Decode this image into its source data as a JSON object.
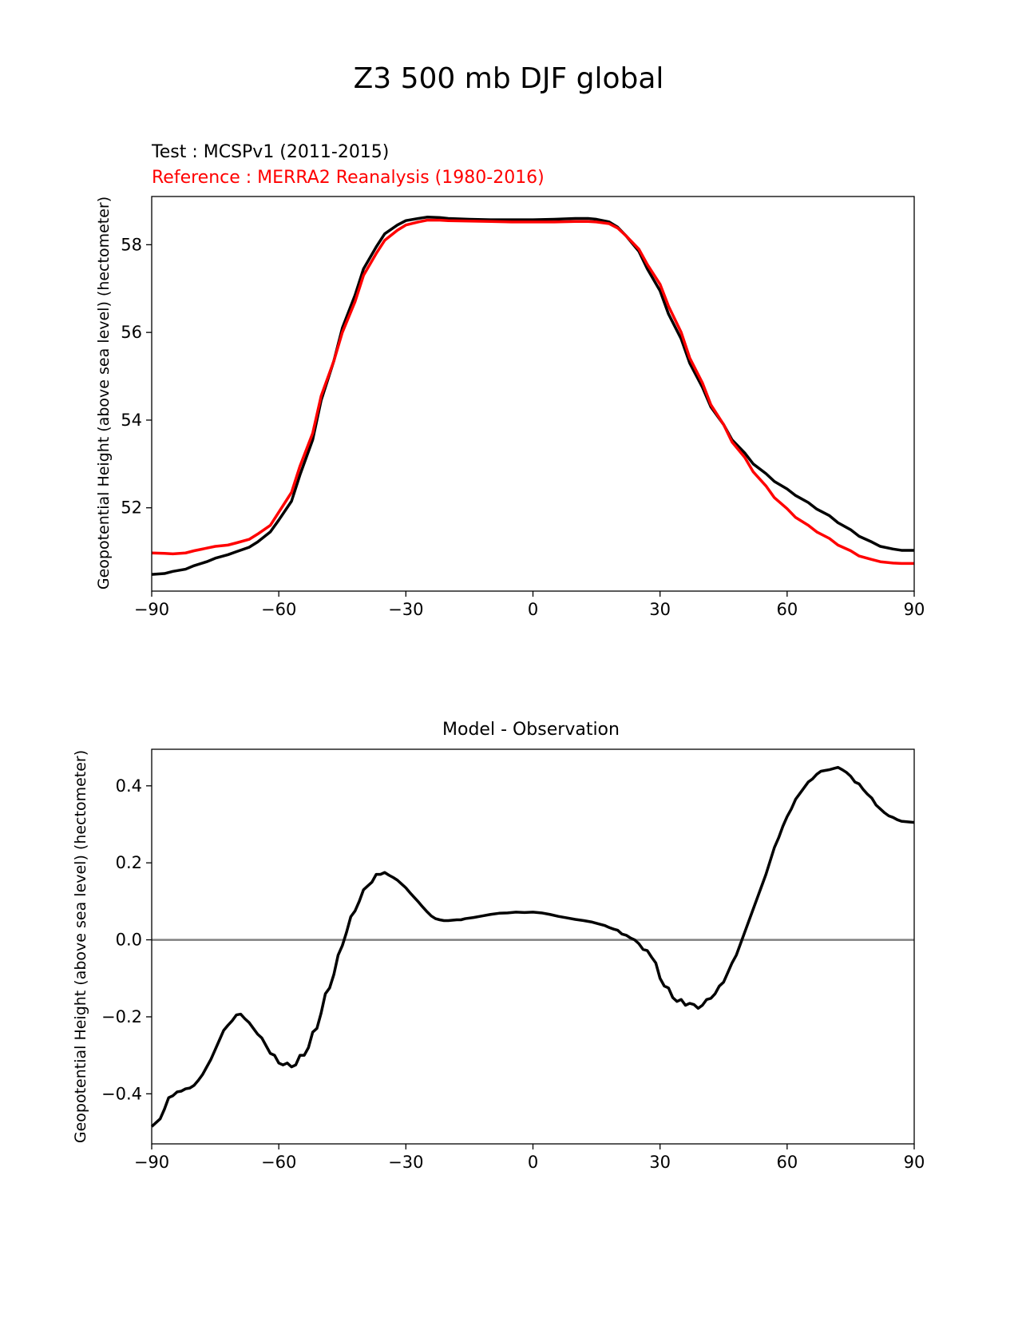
{
  "figure": {
    "suptitle": "Z3 500 mb DJF global"
  },
  "colors": {
    "test": "#000000",
    "reference": "#ff0000",
    "zero_line": "#808080",
    "axes": "#000000"
  },
  "chart_data": [
    {
      "type": "line",
      "title_left_test": "Test : MCSPv1 (2011-2015)",
      "title_left_reference": "Reference : MERRA2 Reanalysis (1980-2016)",
      "xlabel": "",
      "ylabel": "Geopotential Height (above sea level) (hectometer)",
      "xlim": [
        -90,
        90
      ],
      "ylim": [
        50.1,
        59.1
      ],
      "xticks": [
        -90,
        -60,
        -30,
        0,
        30,
        60,
        90
      ],
      "xtick_labels": [
        "−90",
        "−60",
        "−30",
        "0",
        "30",
        "60",
        "90"
      ],
      "yticks": [
        52,
        54,
        56,
        58
      ],
      "ytick_labels": [
        "52",
        "54",
        "56",
        "58"
      ],
      "series": [
        {
          "name": "Test : MCSPv1 (2011-2015)",
          "color": "#000000",
          "x": [
            -90,
            -87,
            -85,
            -82,
            -80,
            -77,
            -75,
            -72,
            -70,
            -67,
            -65,
            -62,
            -60,
            -57,
            -55,
            -52,
            -50,
            -47,
            -45,
            -42,
            -40,
            -37,
            -35,
            -32,
            -30,
            -27,
            -25,
            -22,
            -20,
            -15,
            -10,
            -5,
            0,
            5,
            10,
            13,
            15,
            18,
            20,
            22,
            25,
            27,
            30,
            32,
            35,
            37,
            40,
            42,
            45,
            47,
            50,
            52,
            55,
            57,
            60,
            62,
            65,
            67,
            70,
            72,
            75,
            77,
            80,
            82,
            85,
            87,
            90
          ],
          "y": [
            50.48,
            50.5,
            50.55,
            50.6,
            50.68,
            50.77,
            50.85,
            50.93,
            51.0,
            51.1,
            51.22,
            51.45,
            51.72,
            52.15,
            52.75,
            53.55,
            54.45,
            55.35,
            56.1,
            56.85,
            57.45,
            57.95,
            58.25,
            58.45,
            58.55,
            58.6,
            58.63,
            58.62,
            58.6,
            58.58,
            58.57,
            58.57,
            58.57,
            58.58,
            58.6,
            58.6,
            58.58,
            58.52,
            58.4,
            58.2,
            57.85,
            57.45,
            56.95,
            56.42,
            55.85,
            55.3,
            54.75,
            54.3,
            53.9,
            53.55,
            53.25,
            53.0,
            52.78,
            52.6,
            52.43,
            52.28,
            52.12,
            51.97,
            51.82,
            51.66,
            51.5,
            51.35,
            51.22,
            51.12,
            51.06,
            51.03,
            51.03
          ]
        },
        {
          "name": "Reference : MERRA2 Reanalysis (1980-2016)",
          "color": "#ff0000",
          "x": [
            -90,
            -87,
            -85,
            -82,
            -80,
            -77,
            -75,
            -72,
            -70,
            -67,
            -65,
            -62,
            -60,
            -57,
            -55,
            -52,
            -50,
            -47,
            -45,
            -42,
            -40,
            -37,
            -35,
            -32,
            -30,
            -27,
            -25,
            -22,
            -20,
            -15,
            -10,
            -5,
            0,
            5,
            10,
            13,
            15,
            18,
            20,
            22,
            25,
            27,
            30,
            32,
            35,
            37,
            40,
            42,
            45,
            47,
            50,
            52,
            55,
            57,
            60,
            62,
            65,
            67,
            70,
            72,
            75,
            77,
            80,
            82,
            85,
            87,
            90
          ],
          "y": [
            50.97,
            50.96,
            50.95,
            50.97,
            51.02,
            51.08,
            51.12,
            51.15,
            51.2,
            51.28,
            51.4,
            51.6,
            51.9,
            52.35,
            52.95,
            53.7,
            54.55,
            55.35,
            56.0,
            56.7,
            57.3,
            57.8,
            58.1,
            58.33,
            58.45,
            58.52,
            58.56,
            58.56,
            58.55,
            58.54,
            58.53,
            58.52,
            58.52,
            58.52,
            58.53,
            58.53,
            58.52,
            58.48,
            58.38,
            58.2,
            57.9,
            57.55,
            57.1,
            56.6,
            56.0,
            55.42,
            54.85,
            54.35,
            53.9,
            53.5,
            53.15,
            52.82,
            52.5,
            52.23,
            51.98,
            51.78,
            51.6,
            51.45,
            51.3,
            51.15,
            51.02,
            50.9,
            50.82,
            50.77,
            50.74,
            50.73,
            50.73
          ]
        }
      ]
    },
    {
      "type": "line",
      "title": "Model - Observation",
      "xlabel": "",
      "ylabel": "Geopotential Height (above sea level) (hectometer)",
      "xlim": [
        -90,
        90
      ],
      "ylim": [
        -0.53,
        0.495
      ],
      "xticks": [
        -90,
        -60,
        -30,
        0,
        30,
        60,
        90
      ],
      "xtick_labels": [
        "−90",
        "−60",
        "−30",
        "0",
        "30",
        "60",
        "90"
      ],
      "yticks": [
        -0.4,
        -0.2,
        0.0,
        0.2,
        0.4
      ],
      "ytick_labels": [
        "−0.4",
        "−0.2",
        "0.0",
        "0.2",
        "0.4"
      ],
      "zero_line": 0.0,
      "series": [
        {
          "name": "Model - Observation",
          "color": "#000000",
          "x": [
            -90,
            -88,
            -87,
            -86,
            -85,
            -84,
            -83,
            -82,
            -81,
            -80,
            -79,
            -78,
            -77,
            -76,
            -75,
            -74,
            -73,
            -72,
            -71,
            -70,
            -69,
            -68,
            -67,
            -66,
            -65,
            -64,
            -63,
            -62,
            -61,
            -60,
            -59,
            -58,
            -57,
            -56,
            -55,
            -54,
            -53,
            -52,
            -51,
            -50,
            -49,
            -48,
            -47,
            -46,
            -45,
            -44,
            -43,
            -42,
            -41,
            -40,
            -39,
            -38,
            -37,
            -36,
            -35,
            -34,
            -33,
            -32,
            -31,
            -30,
            -29,
            -28,
            -27,
            -26,
            -25,
            -24,
            -23,
            -22,
            -21,
            -20,
            -19,
            -18,
            -17,
            -16,
            -14,
            -12,
            -10,
            -8,
            -6,
            -4,
            -2,
            0,
            2,
            4,
            6,
            8,
            10,
            12,
            14,
            16,
            17,
            18,
            19,
            20,
            21,
            22,
            23,
            24,
            25,
            26,
            27,
            28,
            29,
            30,
            31,
            32,
            33,
            34,
            35,
            36,
            37,
            38,
            39,
            40,
            41,
            42,
            43,
            44,
            45,
            46,
            47,
            48,
            49,
            50,
            51,
            52,
            53,
            54,
            55,
            56,
            57,
            58,
            59,
            60,
            61,
            62,
            63,
            64,
            65,
            66,
            67,
            68,
            69,
            70,
            71,
            72,
            73,
            74,
            75,
            76,
            77,
            78,
            79,
            80,
            81,
            82,
            83,
            84,
            85,
            86,
            87,
            88,
            89,
            90
          ],
          "y": [
            -0.485,
            -0.465,
            -0.44,
            -0.41,
            -0.405,
            -0.395,
            -0.393,
            -0.387,
            -0.385,
            -0.378,
            -0.365,
            -0.35,
            -0.33,
            -0.31,
            -0.285,
            -0.26,
            -0.235,
            -0.222,
            -0.21,
            -0.195,
            -0.193,
            -0.205,
            -0.215,
            -0.23,
            -0.245,
            -0.255,
            -0.275,
            -0.295,
            -0.3,
            -0.32,
            -0.325,
            -0.32,
            -0.33,
            -0.325,
            -0.3,
            -0.3,
            -0.28,
            -0.24,
            -0.23,
            -0.19,
            -0.14,
            -0.125,
            -0.09,
            -0.04,
            -0.015,
            0.02,
            0.06,
            0.075,
            0.1,
            0.13,
            0.14,
            0.15,
            0.17,
            0.17,
            0.175,
            0.168,
            0.162,
            0.155,
            0.145,
            0.135,
            0.122,
            0.11,
            0.098,
            0.085,
            0.073,
            0.062,
            0.055,
            0.052,
            0.05,
            0.05,
            0.051,
            0.052,
            0.052,
            0.055,
            0.058,
            0.062,
            0.066,
            0.069,
            0.07,
            0.072,
            0.071,
            0.072,
            0.07,
            0.066,
            0.061,
            0.057,
            0.053,
            0.05,
            0.046,
            0.04,
            0.037,
            0.032,
            0.028,
            0.025,
            0.015,
            0.012,
            0.005,
            0.0,
            -0.01,
            -0.025,
            -0.028,
            -0.045,
            -0.06,
            -0.1,
            -0.12,
            -0.125,
            -0.15,
            -0.16,
            -0.155,
            -0.17,
            -0.165,
            -0.168,
            -0.178,
            -0.17,
            -0.155,
            -0.152,
            -0.14,
            -0.12,
            -0.11,
            -0.085,
            -0.06,
            -0.04,
            -0.01,
            0.02,
            0.05,
            0.08,
            0.11,
            0.14,
            0.17,
            0.205,
            0.24,
            0.265,
            0.295,
            0.32,
            0.34,
            0.365,
            0.38,
            0.395,
            0.41,
            0.418,
            0.43,
            0.438,
            0.44,
            0.442,
            0.445,
            0.448,
            0.442,
            0.435,
            0.425,
            0.41,
            0.405,
            0.39,
            0.378,
            0.368,
            0.35,
            0.34,
            0.33,
            0.322,
            0.318,
            0.312,
            0.308,
            0.307,
            0.306,
            0.305
          ]
        }
      ]
    }
  ]
}
